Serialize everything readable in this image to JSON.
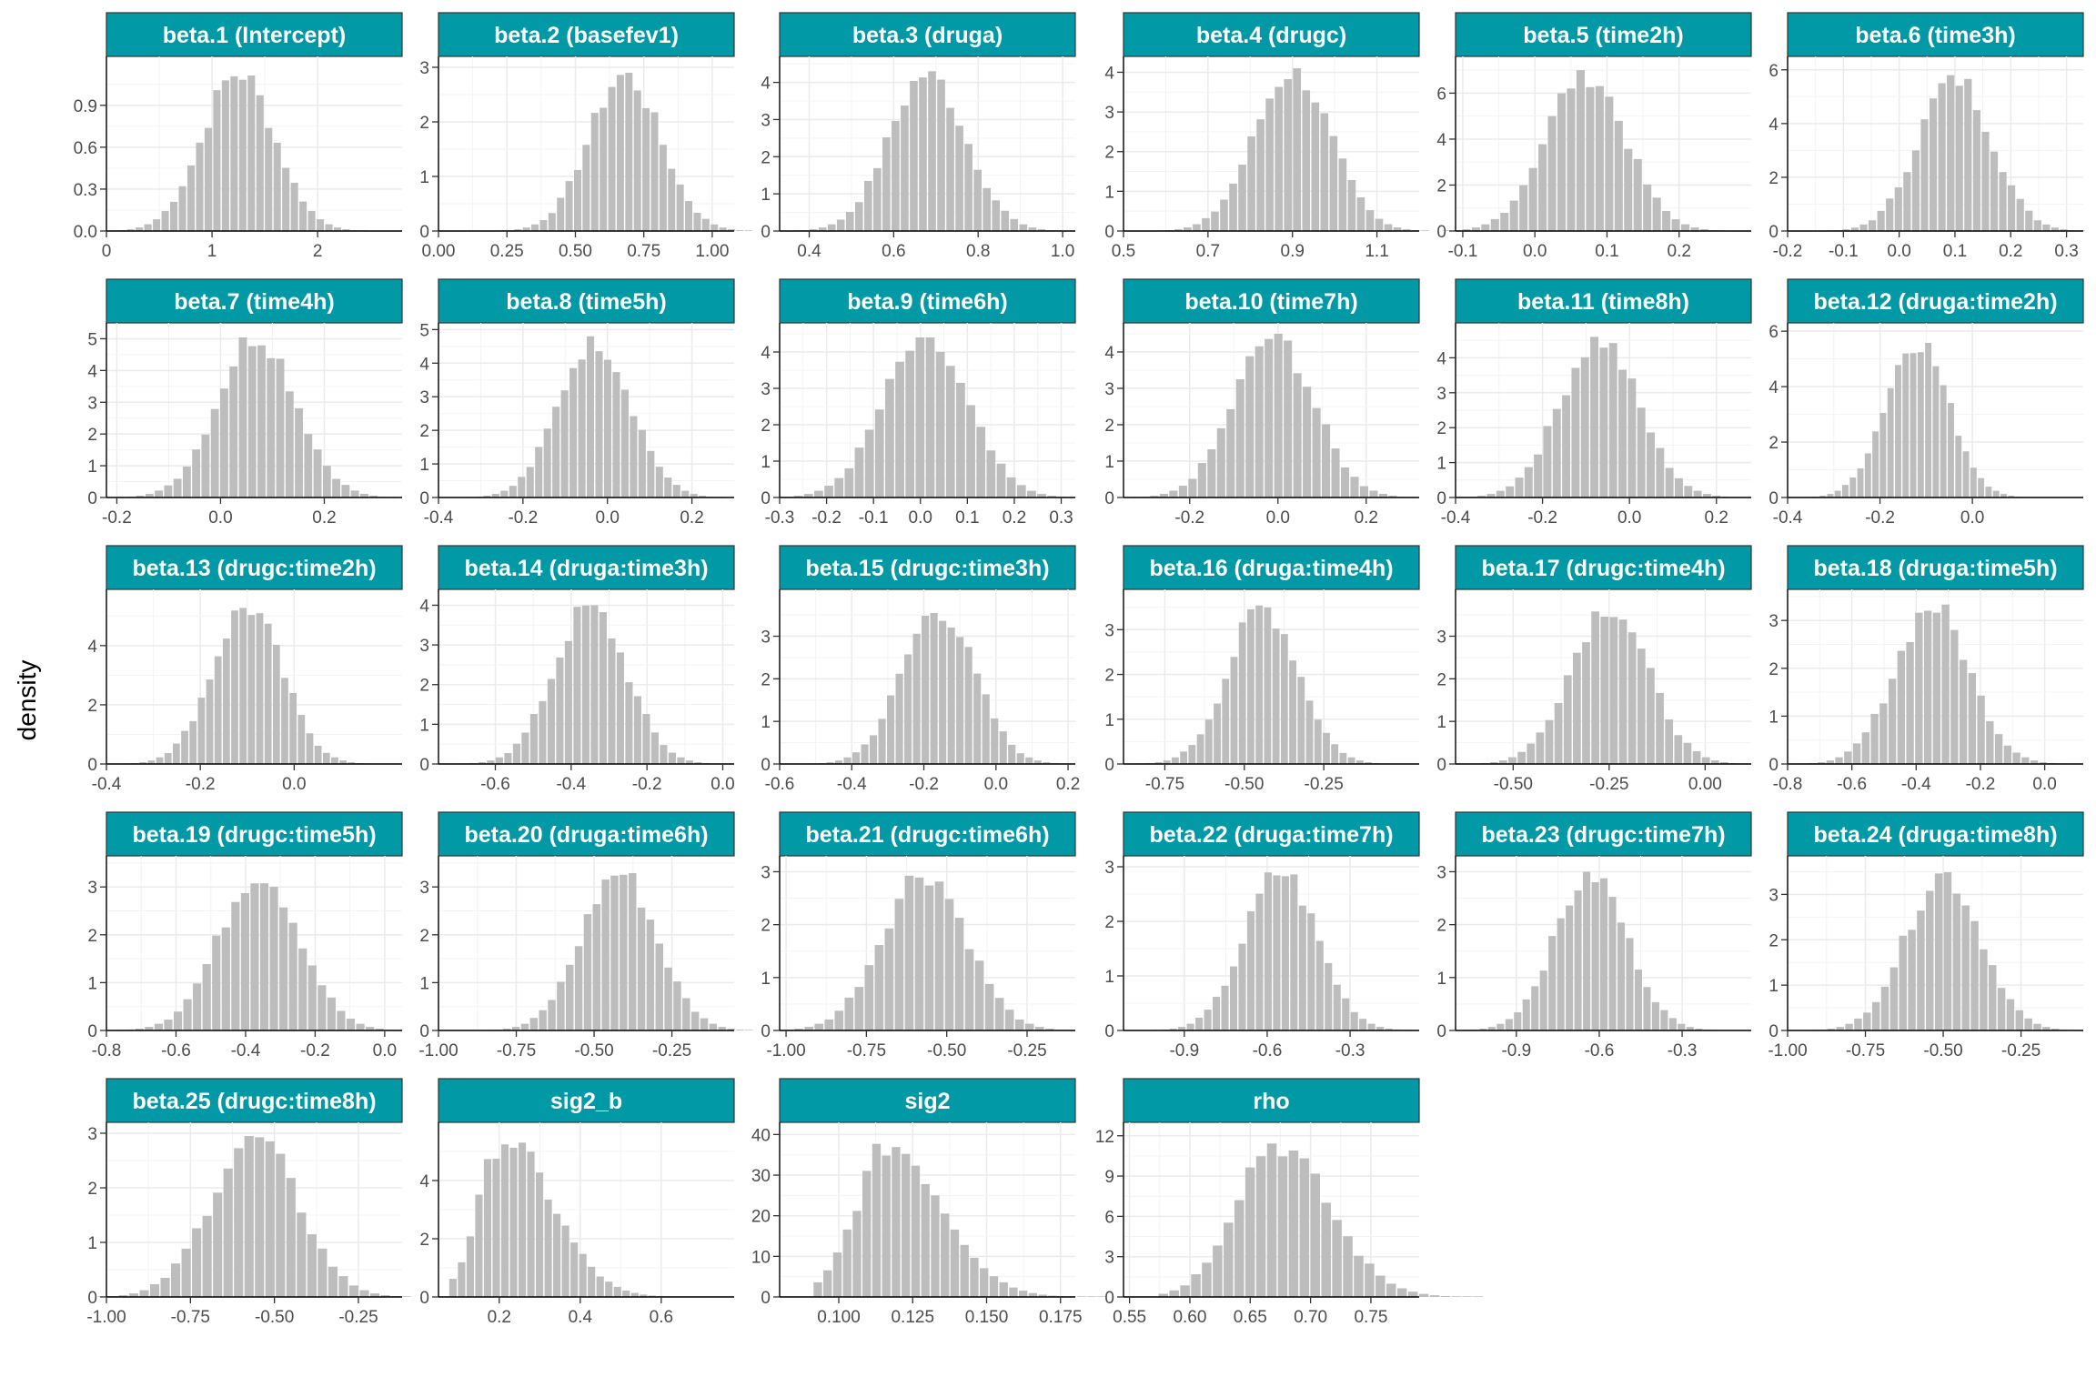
{
  "figure": {
    "ylabel": "density",
    "strip_color": "#0099a5",
    "bar_color": "#bdbdbd",
    "strip_text_color": "#ffffff"
  },
  "chart_data": [
    {
      "type": "bar",
      "title": "beta.1 (Intercept)",
      "xlim": [
        0,
        2.8
      ],
      "ylim": [
        0,
        1.25
      ],
      "xticks": [
        0,
        1,
        2
      ],
      "xtick_labels": [
        "0",
        "1",
        "2"
      ],
      "yticks": [
        0,
        0.3,
        0.6,
        0.9
      ],
      "ytick_labels": [
        "0.0",
        "0.3",
        "0.6",
        "0.9"
      ],
      "center": 1.25,
      "sd": 0.34,
      "peak": 1.15
    },
    {
      "type": "bar",
      "title": "beta.2 (basefev1)",
      "xlim": [
        0,
        1.08
      ],
      "ylim": [
        0,
        3.2
      ],
      "xticks": [
        0,
        0.25,
        0.5,
        0.75,
        1
      ],
      "xtick_labels": [
        "0.00",
        "0.25",
        "0.50",
        "0.75",
        "1.00"
      ],
      "yticks": [
        0,
        1,
        2,
        3
      ],
      "ytick_labels": [
        "0",
        "1",
        "2",
        "3"
      ],
      "center": 0.68,
      "sd": 0.13,
      "peak": 2.9
    },
    {
      "type": "bar",
      "title": "beta.3 (druga)",
      "xlim": [
        0.33,
        1.03
      ],
      "ylim": [
        0,
        4.7
      ],
      "xticks": [
        0.4,
        0.6,
        0.8,
        1.0
      ],
      "xtick_labels": [
        "0.4",
        "0.6",
        "0.8",
        "1.0"
      ],
      "yticks": [
        0,
        1,
        2,
        3,
        4
      ],
      "ytick_labels": [
        "0",
        "1",
        "2",
        "3",
        "4"
      ],
      "center": 0.68,
      "sd": 0.09,
      "peak": 4.3
    },
    {
      "type": "bar",
      "title": "beta.4 (drugc)",
      "xlim": [
        0.5,
        1.2
      ],
      "ylim": [
        0,
        4.4
      ],
      "xticks": [
        0.5,
        0.7,
        0.9,
        1.1
      ],
      "xtick_labels": [
        "0.5",
        "0.7",
        "0.9",
        "1.1"
      ],
      "yticks": [
        0,
        1,
        2,
        3,
        4
      ],
      "ytick_labels": [
        "0",
        "1",
        "2",
        "3",
        "4"
      ],
      "center": 0.9,
      "sd": 0.09,
      "peak": 4.1
    },
    {
      "type": "bar",
      "title": "beta.5 (time2h)",
      "xlim": [
        -0.11,
        0.3
      ],
      "ylim": [
        0,
        7.6
      ],
      "xticks": [
        -0.1,
        0,
        0.1,
        0.2
      ],
      "xtick_labels": [
        "-0.1",
        "0.0",
        "0.1",
        "0.2"
      ],
      "yticks": [
        0,
        2,
        4,
        6
      ],
      "ytick_labels": [
        "0",
        "2",
        "4",
        "6"
      ],
      "center": 0.07,
      "sd": 0.055,
      "peak": 7.0
    },
    {
      "type": "bar",
      "title": "beta.6 (time3h)",
      "xlim": [
        -0.2,
        0.33
      ],
      "ylim": [
        0,
        6.5
      ],
      "xticks": [
        -0.2,
        -0.1,
        0,
        0.1,
        0.2,
        0.3
      ],
      "xtick_labels": [
        "-0.2",
        "-0.1",
        "0.0",
        "0.1",
        "0.2",
        "0.3"
      ],
      "yticks": [
        0,
        2,
        4,
        6
      ],
      "ytick_labels": [
        "0",
        "2",
        "4",
        "6"
      ],
      "center": 0.1,
      "sd": 0.065,
      "peak": 5.8
    },
    {
      "type": "bar",
      "title": "beta.7 (time4h)",
      "xlim": [
        -0.22,
        0.35
      ],
      "ylim": [
        0,
        5.5
      ],
      "xticks": [
        -0.2,
        0,
        0.2
      ],
      "xtick_labels": [
        "-0.2",
        "0.0",
        "0.2"
      ],
      "yticks": [
        0,
        1,
        2,
        3,
        4,
        5
      ],
      "ytick_labels": [
        "0",
        "1",
        "2",
        "3",
        "4",
        "5"
      ],
      "center": 0.07,
      "sd": 0.075,
      "peak": 5.2
    },
    {
      "type": "bar",
      "title": "beta.8 (time5h)",
      "xlim": [
        -0.4,
        0.3
      ],
      "ylim": [
        0,
        5.2
      ],
      "xticks": [
        -0.4,
        -0.2,
        0,
        0.2
      ],
      "xtick_labels": [
        "-0.4",
        "-0.2",
        "0.0",
        "0.2"
      ],
      "yticks": [
        0,
        1,
        2,
        3,
        4,
        5
      ],
      "ytick_labels": [
        "0",
        "1",
        "2",
        "3",
        "4",
        "5"
      ],
      "center": -0.03,
      "sd": 0.085,
      "peak": 4.8
    },
    {
      "type": "bar",
      "title": "beta.9 (time6h)",
      "xlim": [
        -0.3,
        0.33
      ],
      "ylim": [
        0,
        4.8
      ],
      "xticks": [
        -0.3,
        -0.2,
        -0.1,
        0,
        0.1,
        0.2,
        0.3
      ],
      "xtick_labels": [
        "-0.3",
        "-0.2",
        "-0.1",
        "0.0",
        "0.1",
        "0.2",
        "0.3"
      ],
      "yticks": [
        0,
        1,
        2,
        3,
        4
      ],
      "ytick_labels": [
        "0",
        "1",
        "2",
        "3",
        "4"
      ],
      "center": 0.01,
      "sd": 0.09,
      "peak": 4.4
    },
    {
      "type": "bar",
      "title": "beta.10 (time7h)",
      "xlim": [
        -0.35,
        0.32
      ],
      "ylim": [
        0,
        4.8
      ],
      "xticks": [
        -0.2,
        0,
        0.2
      ],
      "xtick_labels": [
        "-0.2",
        "0.0",
        "0.2"
      ],
      "yticks": [
        0,
        1,
        2,
        3,
        4
      ],
      "ytick_labels": [
        "0",
        "1",
        "2",
        "3",
        "4"
      ],
      "center": -0.01,
      "sd": 0.09,
      "peak": 4.5
    },
    {
      "type": "bar",
      "title": "beta.11 (time8h)",
      "xlim": [
        -0.4,
        0.28
      ],
      "ylim": [
        0,
        5.0
      ],
      "xticks": [
        -0.4,
        -0.2,
        0,
        0.2
      ],
      "xtick_labels": [
        "-0.4",
        "-0.2",
        "0.0",
        "0.2"
      ],
      "yticks": [
        0,
        1,
        2,
        3,
        4
      ],
      "ytick_labels": [
        "0",
        "1",
        "2",
        "3",
        "4"
      ],
      "center": -0.07,
      "sd": 0.09,
      "peak": 4.6
    },
    {
      "type": "bar",
      "title": "beta.12 (druga:time2h)",
      "xlim": [
        -0.4,
        0.24
      ],
      "ylim": [
        0,
        6.3
      ],
      "xticks": [
        -0.4,
        -0.2,
        0
      ],
      "xtick_labels": [
        "-0.4",
        "-0.2",
        "0.0"
      ],
      "yticks": [
        0,
        2,
        4,
        6
      ],
      "ytick_labels": [
        "0",
        "2",
        "4",
        "6"
      ],
      "center": -0.12,
      "sd": 0.068,
      "peak": 5.8
    },
    {
      "type": "bar",
      "title": "beta.13 (drugc:time2h)",
      "xlim": [
        -0.4,
        0.23
      ],
      "ylim": [
        0,
        5.9
      ],
      "xticks": [
        -0.4,
        -0.2,
        0
      ],
      "xtick_labels": [
        "-0.4",
        "-0.2",
        "0.0"
      ],
      "yticks": [
        0,
        2,
        4
      ],
      "ytick_labels": [
        "0",
        "2",
        "4"
      ],
      "center": -0.1,
      "sd": 0.074,
      "peak": 5.4
    },
    {
      "type": "bar",
      "title": "beta.14 (druga:time3h)",
      "xlim": [
        -0.75,
        0.03
      ],
      "ylim": [
        0,
        4.4
      ],
      "xticks": [
        -0.6,
        -0.4,
        -0.2,
        0
      ],
      "xtick_labels": [
        "-0.6",
        "-0.4",
        "-0.2",
        "0.0"
      ],
      "yticks": [
        0,
        1,
        2,
        3,
        4
      ],
      "ytick_labels": [
        "0",
        "1",
        "2",
        "3",
        "4"
      ],
      "center": -0.35,
      "sd": 0.095,
      "peak": 4.0
    },
    {
      "type": "bar",
      "title": "beta.15 (drugc:time3h)",
      "xlim": [
        -0.6,
        0.22
      ],
      "ylim": [
        0,
        4.1
      ],
      "xticks": [
        -0.6,
        -0.4,
        -0.2,
        0,
        0.2
      ],
      "xtick_labels": [
        "-0.6",
        "-0.4",
        "-0.2",
        "0.0",
        "0.2"
      ],
      "yticks": [
        0,
        1,
        2,
        3
      ],
      "ytick_labels": [
        "0",
        "1",
        "2",
        "3"
      ],
      "center": -0.16,
      "sd": 0.1,
      "peak": 3.7
    },
    {
      "type": "bar",
      "title": "beta.16 (druga:time4h)",
      "xlim": [
        -0.88,
        0.05
      ],
      "ylim": [
        0,
        3.9
      ],
      "xticks": [
        -0.75,
        -0.5,
        -0.25
      ],
      "xtick_labels": [
        "-0.75",
        "-0.50",
        "-0.25"
      ],
      "yticks": [
        0,
        1,
        2,
        3
      ],
      "ytick_labels": [
        "0",
        "1",
        "2",
        "3"
      ],
      "center": -0.44,
      "sd": 0.11,
      "peak": 3.55
    },
    {
      "type": "bar",
      "title": "beta.17 (drugc:time4h)",
      "xlim": [
        -0.65,
        0.12
      ],
      "ylim": [
        0,
        4.1
      ],
      "xticks": [
        -0.5,
        -0.25,
        0
      ],
      "xtick_labels": [
        "-0.50",
        "-0.25",
        "0.00"
      ],
      "yticks": [
        0,
        1,
        2,
        3
      ],
      "ytick_labels": [
        "0",
        "1",
        "2",
        "3"
      ],
      "center": -0.25,
      "sd": 0.1,
      "peak": 3.8
    },
    {
      "type": "bar",
      "title": "beta.18 (druga:time5h)",
      "xlim": [
        -0.8,
        0.12
      ],
      "ylim": [
        0,
        3.65
      ],
      "xticks": [
        -0.8,
        -0.6,
        -0.4,
        -0.2,
        0
      ],
      "xtick_labels": [
        "-0.8",
        "-0.6",
        "-0.4",
        "-0.2",
        "0.0"
      ],
      "yticks": [
        0,
        1,
        2,
        3
      ],
      "ytick_labels": [
        "0",
        "1",
        "2",
        "3"
      ],
      "center": -0.35,
      "sd": 0.115,
      "peak": 3.35
    },
    {
      "type": "bar",
      "title": "beta.19 (drugc:time5h)",
      "xlim": [
        -0.8,
        0.05
      ],
      "ylim": [
        0,
        3.65
      ],
      "xticks": [
        -0.8,
        -0.6,
        -0.4,
        -0.2,
        0
      ],
      "xtick_labels": [
        "-0.8",
        "-0.6",
        "-0.4",
        "-0.2",
        "0.0"
      ],
      "yticks": [
        0,
        1,
        2,
        3
      ],
      "ytick_labels": [
        "0",
        "1",
        "2",
        "3"
      ],
      "center": -0.36,
      "sd": 0.115,
      "peak": 3.35
    },
    {
      "type": "bar",
      "title": "beta.20 (druga:time6h)",
      "xlim": [
        -1.0,
        -0.05
      ],
      "ylim": [
        0,
        3.65
      ],
      "xticks": [
        -1,
        -0.75,
        -0.5,
        -0.25
      ],
      "xtick_labels": [
        "-1.00",
        "-0.75",
        "-0.50",
        "-0.25"
      ],
      "yticks": [
        0,
        1,
        2,
        3
      ],
      "ytick_labels": [
        "0",
        "1",
        "2",
        "3"
      ],
      "center": -0.42,
      "sd": 0.12,
      "peak": 3.35
    },
    {
      "type": "bar",
      "title": "beta.21 (drugc:time6h)",
      "xlim": [
        -1.02,
        -0.1
      ],
      "ylim": [
        0,
        3.3
      ],
      "xticks": [
        -1,
        -0.75,
        -0.5,
        -0.25
      ],
      "xtick_labels": [
        "-1.00",
        "-0.75",
        "-0.50",
        "-0.25"
      ],
      "yticks": [
        0,
        1,
        2,
        3
      ],
      "ytick_labels": [
        "0",
        "1",
        "2",
        "3"
      ],
      "center": -0.57,
      "sd": 0.13,
      "peak": 3.05
    },
    {
      "type": "bar",
      "title": "beta.22 (druga:time7h)",
      "xlim": [
        -1.12,
        -0.05
      ],
      "ylim": [
        0,
        3.2
      ],
      "xticks": [
        -0.9,
        -0.6,
        -0.3
      ],
      "xtick_labels": [
        "-0.9",
        "-0.6",
        "-0.3"
      ],
      "yticks": [
        0,
        1,
        2,
        3
      ],
      "ytick_labels": [
        "0",
        "1",
        "2",
        "3"
      ],
      "center": -0.55,
      "sd": 0.13,
      "peak": 2.95
    },
    {
      "type": "bar",
      "title": "beta.23 (drugc:time7h)",
      "xlim": [
        -1.12,
        -0.05
      ],
      "ylim": [
        0,
        3.3
      ],
      "xticks": [
        -0.9,
        -0.6,
        -0.3
      ],
      "xtick_labels": [
        "-0.9",
        "-0.6",
        "-0.3"
      ],
      "yticks": [
        0,
        1,
        2,
        3
      ],
      "ytick_labels": [
        "0",
        "1",
        "2",
        "3"
      ],
      "center": -0.63,
      "sd": 0.13,
      "peak": 3.0
    },
    {
      "type": "bar",
      "title": "beta.24 (druga:time8h)",
      "xlim": [
        -1.0,
        -0.05
      ],
      "ylim": [
        0,
        3.85
      ],
      "xticks": [
        -1,
        -0.75,
        -0.5,
        -0.25
      ],
      "xtick_labels": [
        "-1.00",
        "-0.75",
        "-0.50",
        "-0.25"
      ],
      "yticks": [
        0,
        1,
        2,
        3
      ],
      "ytick_labels": [
        "0",
        "1",
        "2",
        "3"
      ],
      "center": -0.5,
      "sd": 0.12,
      "peak": 3.5
    },
    {
      "type": "bar",
      "title": "beta.25 (drugc:time8h)",
      "xlim": [
        -1.0,
        -0.12
      ],
      "ylim": [
        0,
        3.2
      ],
      "xticks": [
        -1,
        -0.75,
        -0.5,
        -0.25
      ],
      "xtick_labels": [
        "-1.00",
        "-0.75",
        "-0.50",
        "-0.25"
      ],
      "yticks": [
        0,
        1,
        2,
        3
      ],
      "ytick_labels": [
        "0",
        "1",
        "2",
        "3"
      ],
      "center": -0.56,
      "sd": 0.13,
      "peak": 2.95
    },
    {
      "type": "bar",
      "title": "sig2_b",
      "xlim": [
        0.05,
        0.78
      ],
      "ylim": [
        0,
        6.0
      ],
      "xticks": [
        0.2,
        0.4,
        0.6
      ],
      "xtick_labels": [
        "0.2",
        "0.4",
        "0.6"
      ],
      "yticks": [
        0,
        2,
        4
      ],
      "ytick_labels": [
        "0",
        "2",
        "4"
      ],
      "center": 0.21,
      "sd": 0.06,
      "peak": 5.5,
      "skew": 2.2
    },
    {
      "type": "bar",
      "title": "sig2",
      "xlim": [
        0.08,
        0.18
      ],
      "ylim": [
        0,
        43
      ],
      "xticks": [
        0.1,
        0.125,
        0.15,
        0.175
      ],
      "xtick_labels": [
        "0.100",
        "0.125",
        "0.150",
        "0.175"
      ],
      "yticks": [
        0,
        10,
        20,
        30,
        40
      ],
      "ytick_labels": [
        "0",
        "10",
        "20",
        "30",
        "40"
      ],
      "center": 0.117,
      "sd": 0.011,
      "peak": 38,
      "skew": 1.4
    },
    {
      "type": "bar",
      "title": "rho",
      "xlim": [
        0.545,
        0.79
      ],
      "ylim": [
        0,
        13
      ],
      "xticks": [
        0.55,
        0.6,
        0.65,
        0.7,
        0.75
      ],
      "xtick_labels": [
        "0.55",
        "0.60",
        "0.65",
        "0.70",
        "0.75"
      ],
      "yticks": [
        0,
        3,
        6,
        9,
        12
      ],
      "ytick_labels": [
        "0",
        "3",
        "6",
        "9",
        "12"
      ],
      "center": 0.67,
      "sd": 0.033,
      "peak": 11.6,
      "skew": 0.75
    }
  ]
}
